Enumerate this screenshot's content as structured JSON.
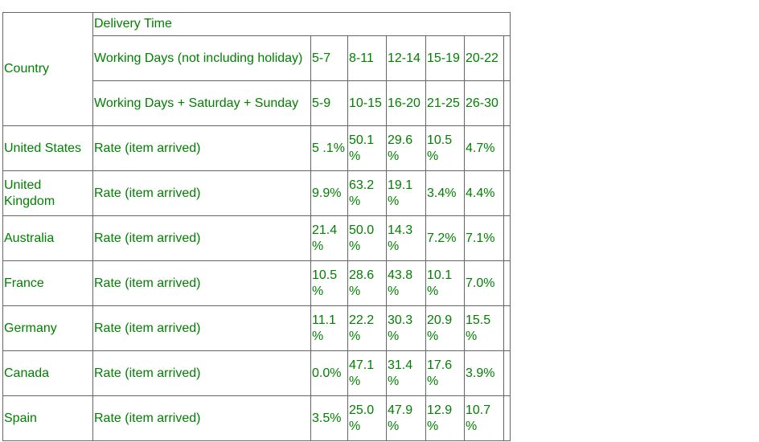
{
  "table": {
    "country_label": "Country",
    "delivery_time_label": "Delivery Time",
    "rate_label": "Rate (item arrived)",
    "working_days_rows": [
      {
        "label": "Working Days (not including holiday)",
        "times": [
          "5-7",
          "8-11",
          "12-14",
          "15-19",
          "20-22"
        ]
      },
      {
        "label": "Working Days + Saturday + Sunday",
        "times": [
          "5-9",
          "10-15",
          "16-20",
          "21-25",
          "26-30"
        ]
      }
    ],
    "rows": [
      {
        "country": "United States",
        "rates": [
          "5 .1%",
          "50.1 %",
          "29.6 %",
          "10.5 %",
          "4.7%"
        ]
      },
      {
        "country": "United Kingdom",
        "rates": [
          "9.9%",
          "63.2 %",
          "19.1 %",
          "3.4%",
          "4.4%"
        ]
      },
      {
        "country": "Australia",
        "rates": [
          "21.4 %",
          "50.0 %",
          "14.3 %",
          "7.2%",
          "7.1%"
        ]
      },
      {
        "country": "France",
        "rates": [
          "10.5 %",
          "28.6 %",
          "43.8 %",
          "10.1 %",
          "7.0%"
        ]
      },
      {
        "country": "Germany",
        "rates": [
          "11.1 %",
          "22.2 %",
          "30.3 %",
          "20.9 %",
          "15.5 %"
        ]
      },
      {
        "country": "Canada",
        "rates": [
          "0.0%",
          "47.1 %",
          "31.4 %",
          "17.6 %",
          "3.9%"
        ]
      },
      {
        "country": "Spain",
        "rates": [
          "3.5%",
          "25.0 %",
          "47.9 %",
          "12.9 %",
          "10.7 %"
        ]
      }
    ],
    "colors": {
      "text": "#008000",
      "border": "#666666",
      "background": "#ffffff"
    }
  }
}
